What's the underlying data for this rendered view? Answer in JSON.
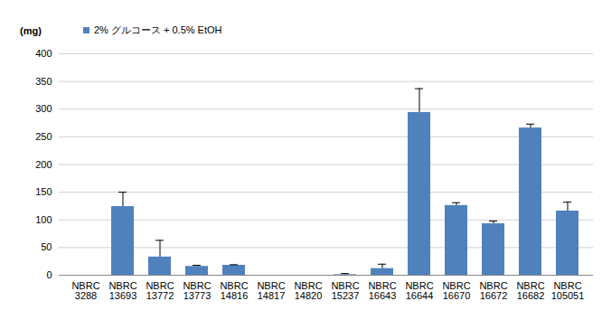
{
  "chart_data": {
    "type": "bar",
    "y_label": "(mg)",
    "categories": [
      "NBRC 3288",
      "NBRC 13693",
      "NBRC 13772",
      "NBRC 13773",
      "NBRC 14816",
      "NBRC 14817",
      "NBRC 14820",
      "NBRC 15237",
      "NBRC 16643",
      "NBRC 16644",
      "NBRC 16670",
      "NBRC 16672",
      "NBRC 16682",
      "NBRC 105051"
    ],
    "series": [
      {
        "name": "2% グルコース + 0.5% EtOH",
        "color": "#4f81bd",
        "values": [
          0,
          124,
          33,
          16,
          18,
          0,
          0,
          1,
          12,
          294,
          126,
          93,
          266,
          116
        ],
        "errors": [
          0,
          26,
          30,
          2,
          1,
          0,
          0,
          2,
          8,
          43,
          5,
          5,
          7,
          16
        ]
      }
    ],
    "ylim": [
      0,
      400
    ],
    "yticks": [
      0,
      50,
      100,
      150,
      200,
      250,
      300,
      350,
      400
    ],
    "grid": true,
    "legend": "top-left"
  }
}
